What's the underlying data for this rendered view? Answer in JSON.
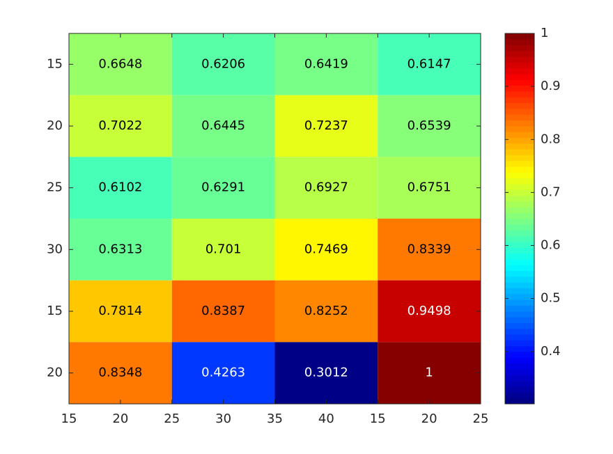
{
  "chart_data": {
    "type": "heatmap",
    "colormap": "jet",
    "values": [
      [
        0.6648,
        0.6206,
        0.6419,
        0.6147
      ],
      [
        0.7022,
        0.6445,
        0.7237,
        0.6539
      ],
      [
        0.6102,
        0.6291,
        0.6927,
        0.6751
      ],
      [
        0.6313,
        0.701,
        0.7469,
        0.8339
      ],
      [
        0.7814,
        0.8387,
        0.8252,
        0.9498
      ],
      [
        0.8348,
        0.4263,
        0.3012,
        1
      ]
    ],
    "xlim": [
      0.5,
      4.5
    ],
    "xticks": [
      {
        "value": 0.5,
        "label": "15"
      },
      {
        "value": 1,
        "label": "20"
      },
      {
        "value": 1.5,
        "label": "25"
      },
      {
        "value": 2,
        "label": "30"
      },
      {
        "value": 2.5,
        "label": "35"
      },
      {
        "value": 3,
        "label": "40"
      },
      {
        "value": 3.5,
        "label": "15"
      },
      {
        "value": 4,
        "label": "20"
      },
      {
        "value": 4.5,
        "label": "25"
      }
    ],
    "ylim": [
      0.5,
      6.5
    ],
    "y_reversed": true,
    "yticks": [
      {
        "value": 1,
        "label": "15"
      },
      {
        "value": 2,
        "label": "20"
      },
      {
        "value": 3,
        "label": "25"
      },
      {
        "value": 4,
        "label": "30"
      },
      {
        "value": 5,
        "label": "15"
      },
      {
        "value": 6,
        "label": "20"
      }
    ],
    "clim": [
      0.3012,
      1
    ],
    "cticks": [
      0.4,
      0.5,
      0.6,
      0.7,
      0.8,
      0.9,
      1
    ]
  }
}
